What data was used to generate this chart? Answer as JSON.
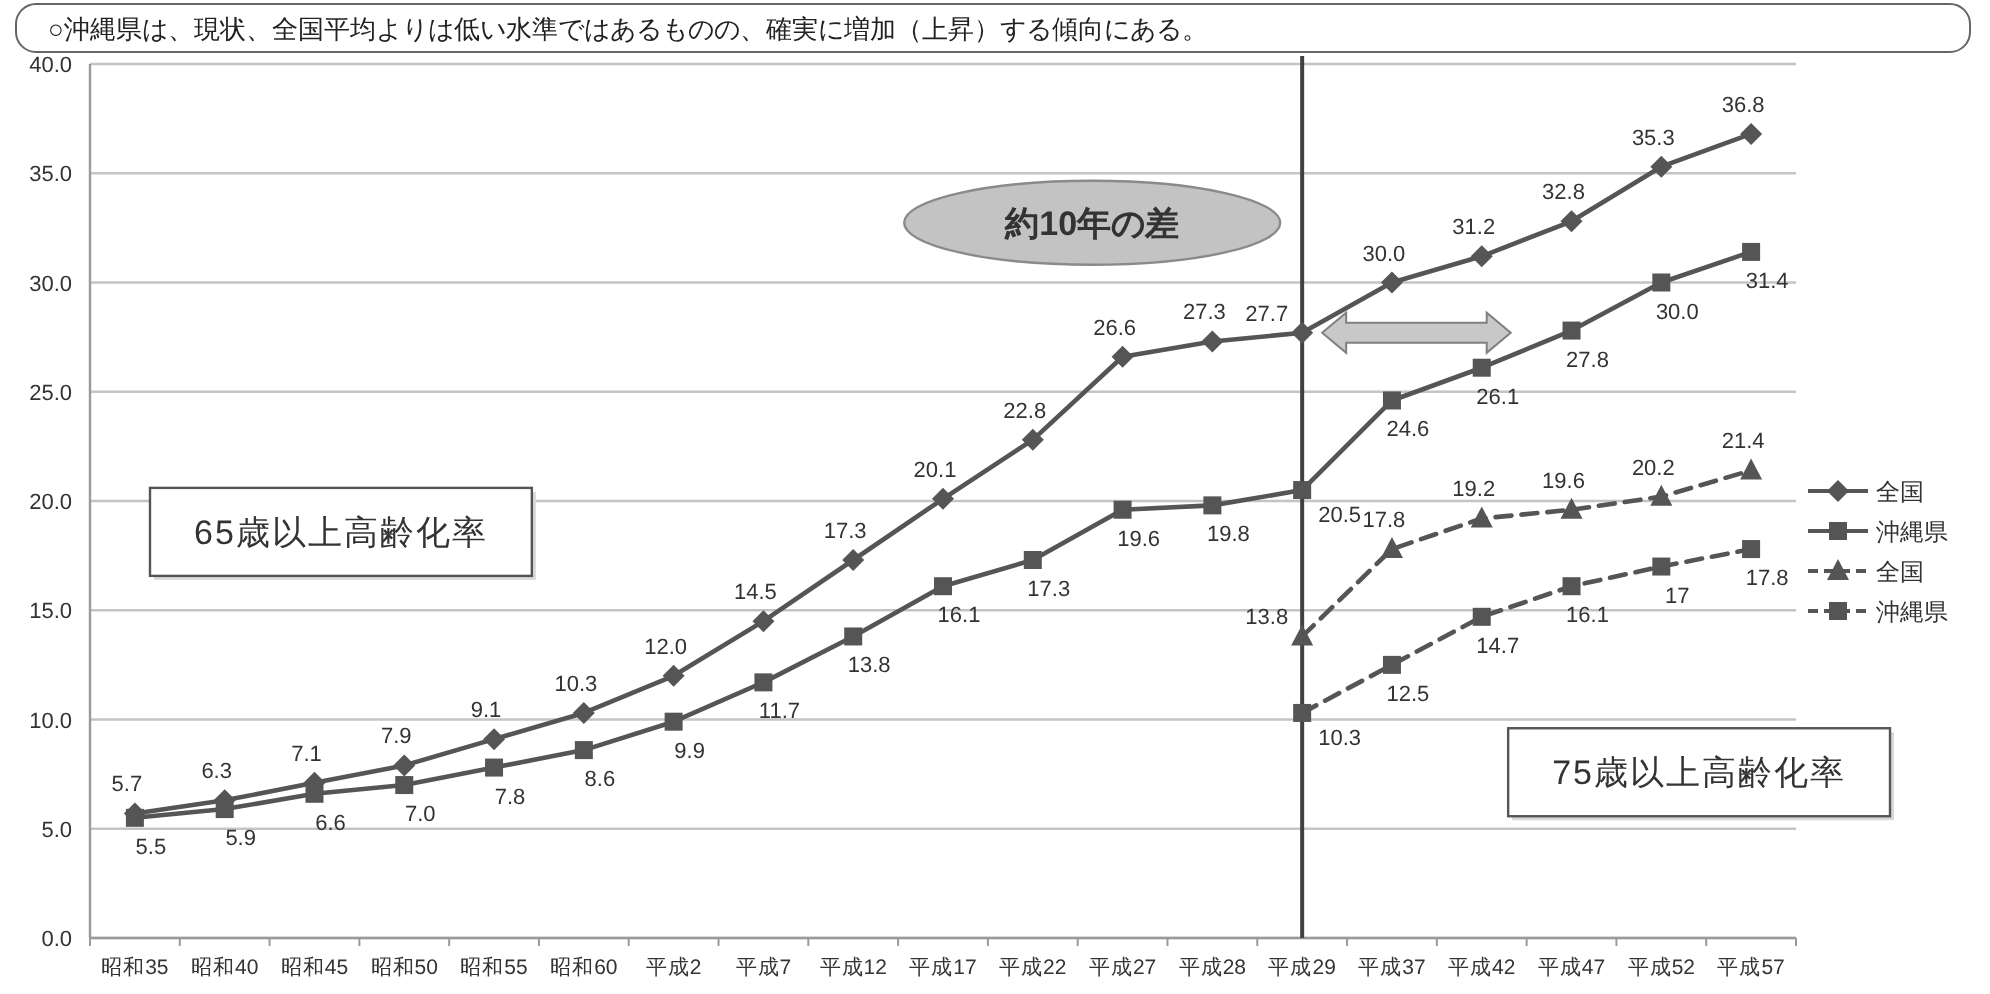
{
  "chart_data": {
    "type": "line",
    "title": "○沖縄県は、現状、全国平均よりは低い水準ではあるものの、確実に増加（上昇）する傾向にある。",
    "categories": [
      "昭和35",
      "昭和40",
      "昭和45",
      "昭和50",
      "昭和55",
      "昭和60",
      "平成2",
      "平成7",
      "平成12",
      "平成17",
      "平成22",
      "平成27",
      "平成28",
      "平成29",
      "平成37",
      "平成42",
      "平成47",
      "平成52",
      "平成57"
    ],
    "series": [
      {
        "name": "全国",
        "color": "#555555",
        "marker": "diamond",
        "line_style": "solid",
        "values": [
          5.7,
          6.3,
          7.1,
          7.9,
          9.1,
          10.3,
          12.0,
          14.5,
          17.3,
          20.1,
          22.8,
          26.6,
          27.3,
          27.7,
          30.0,
          31.2,
          32.8,
          35.3,
          36.8
        ],
        "value_labels": [
          "5.7",
          "6.3",
          "7.1",
          "7.9",
          "9.1",
          "10.3",
          "12.0",
          "14.5",
          "17.3",
          "20.1",
          "22.8",
          "26.6",
          "27.3",
          "27.7",
          "30.0",
          "31.2",
          "32.8",
          "35.3",
          "36.8"
        ]
      },
      {
        "name": "沖縄県",
        "color": "#555555",
        "marker": "square",
        "line_style": "solid",
        "values": [
          5.5,
          5.9,
          6.6,
          7.0,
          7.8,
          8.6,
          9.9,
          11.7,
          13.8,
          16.1,
          17.3,
          19.6,
          19.8,
          20.5,
          24.6,
          26.1,
          27.8,
          30.0,
          31.4
        ],
        "value_labels": [
          "5.5",
          "5.9",
          "6.6",
          "7.0",
          "7.8",
          "8.6",
          "9.9",
          "11.7",
          "13.8",
          "16.1",
          "17.3",
          "19.6",
          "19.8",
          "20.5",
          "24.6",
          "26.1",
          "27.8",
          "30.0",
          "31.4"
        ]
      },
      {
        "name": "全国",
        "color": "#555555",
        "marker": "triangle",
        "line_style": "dashed",
        "values": [
          null,
          null,
          null,
          null,
          null,
          null,
          null,
          null,
          null,
          null,
          null,
          null,
          null,
          13.8,
          17.8,
          19.2,
          19.6,
          20.2,
          21.4
        ],
        "value_labels": [
          null,
          null,
          null,
          null,
          null,
          null,
          null,
          null,
          null,
          null,
          null,
          null,
          null,
          "13.8",
          "17.8",
          "19.2",
          "19.6",
          "20.2",
          "21.4"
        ]
      },
      {
        "name": "沖縄県",
        "color": "#555555",
        "marker": "square",
        "line_style": "dashed",
        "values": [
          null,
          null,
          null,
          null,
          null,
          null,
          null,
          null,
          null,
          null,
          null,
          null,
          null,
          10.3,
          12.5,
          14.7,
          16.1,
          17,
          17.8
        ],
        "value_labels": [
          null,
          null,
          null,
          null,
          null,
          null,
          null,
          null,
          null,
          null,
          null,
          null,
          null,
          "10.3",
          "12.5",
          "14.7",
          "16.1",
          "17",
          "17.8"
        ]
      }
    ],
    "ylim": [
      0,
      40
    ],
    "yticks": [
      {
        "value": 0,
        "label": "0.0"
      },
      {
        "value": 5,
        "label": "5.0"
      },
      {
        "value": 10,
        "label": "10.0"
      },
      {
        "value": 15,
        "label": "15.0"
      },
      {
        "value": 20,
        "label": "20.0"
      },
      {
        "value": 25,
        "label": "25.0"
      },
      {
        "value": 30,
        "label": "30.0"
      },
      {
        "value": 35,
        "label": "35.0"
      },
      {
        "value": 40,
        "label": "40.0"
      }
    ],
    "grid": "y",
    "legend": "right",
    "ref_lines": [
      {
        "axis": "x",
        "value": "平成29",
        "color": "#404040"
      }
    ],
    "annotations": [
      "65歳以上高齢化率",
      "75歳以上高齢化率",
      "約10年の差"
    ]
  }
}
